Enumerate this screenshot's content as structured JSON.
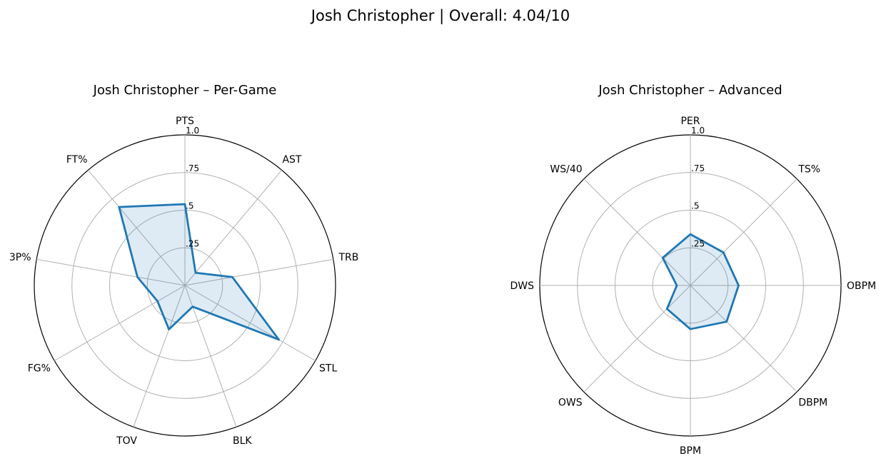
{
  "suptitle": "Josh Christopher | Overall: 4.04/10",
  "style": {
    "series_color": "#1f77b4",
    "fill_color": "#1f77b4",
    "grid_color": "#b0b0b0",
    "spine_color": "#000000"
  },
  "chart_data": [
    {
      "type": "radar",
      "title": "Josh Christopher – Per-Game",
      "categories": [
        "PTS",
        "AST",
        "TRB",
        "STL",
        "BLK",
        "TOV",
        "FG%",
        "3P%",
        "FT%"
      ],
      "values": [
        0.54,
        0.11,
        0.32,
        0.72,
        0.15,
        0.31,
        0.21,
        0.32,
        0.68
      ],
      "rlim": [
        0,
        1
      ],
      "r_ticks": [
        0.25,
        0.5,
        0.75,
        1.0
      ],
      "r_tick_labels": [
        ".25",
        ".5",
        ".75",
        "1.0"
      ],
      "grid": true
    },
    {
      "type": "radar",
      "title": "Josh Christopher – Advanced",
      "categories": [
        "PER",
        "TS%",
        "OBPM",
        "DBPM",
        "BPM",
        "OWS",
        "DWS",
        "WS/40"
      ],
      "values": [
        0.34,
        0.31,
        0.32,
        0.34,
        0.29,
        0.22,
        0.09,
        0.26
      ],
      "rlim": [
        0,
        1
      ],
      "r_ticks": [
        0.25,
        0.5,
        0.75,
        1.0
      ],
      "r_tick_labels": [
        ".25",
        ".5",
        ".75",
        "1.0"
      ],
      "grid": true
    }
  ]
}
